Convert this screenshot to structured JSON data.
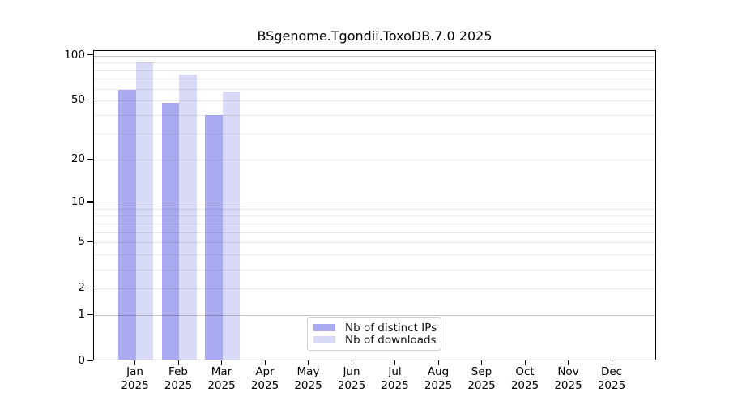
{
  "title": "BSgenome.Tgondii.ToxoDB.7.0 2025",
  "colors": {
    "distinct_ips": "#a9aaf0",
    "downloads": "#d8daf7",
    "grid_decade": "rgba(0,0,0,0.22)",
    "grid_minor": "rgba(0,0,0,0.085)",
    "axis": "#000000",
    "legend_border": "#d2d2d2"
  },
  "chart_data": {
    "type": "bar",
    "title": "BSgenome.Tgondii.ToxoDB.7.0 2025",
    "categories": [
      "Jan",
      "Feb",
      "Mar",
      "Apr",
      "May",
      "Jun",
      "Jul",
      "Aug",
      "Sep",
      "Oct",
      "Nov",
      "Dec"
    ],
    "category_year": "2025",
    "series": [
      {
        "name": "Nb of distinct IPs",
        "color": "#a9aaf0",
        "values": [
          58,
          47,
          39,
          0,
          0,
          0,
          0,
          0,
          0,
          0,
          0,
          0
        ]
      },
      {
        "name": "Nb of downloads",
        "color": "#d8daf7",
        "values": [
          88,
          73,
          56,
          0,
          0,
          0,
          0,
          0,
          0,
          0,
          0,
          0
        ]
      }
    ],
    "xlabel": "",
    "ylabel": "",
    "y_axis": {
      "scale": "log1p",
      "tick_values": [
        0,
        1,
        2,
        5,
        10,
        20,
        50,
        100
      ],
      "tick_labels": [
        "0",
        "1",
        "2",
        "5",
        "10",
        "20",
        "50",
        "100"
      ],
      "axis_max": 107,
      "gridline_values": [
        1,
        2,
        3,
        4,
        5,
        6,
        7,
        8,
        9,
        10,
        20,
        30,
        40,
        50,
        60,
        70,
        80,
        90,
        100
      ],
      "decade_values": [
        1,
        10,
        100
      ]
    },
    "grid": "horizontal",
    "legend_position": "bottom-center"
  }
}
